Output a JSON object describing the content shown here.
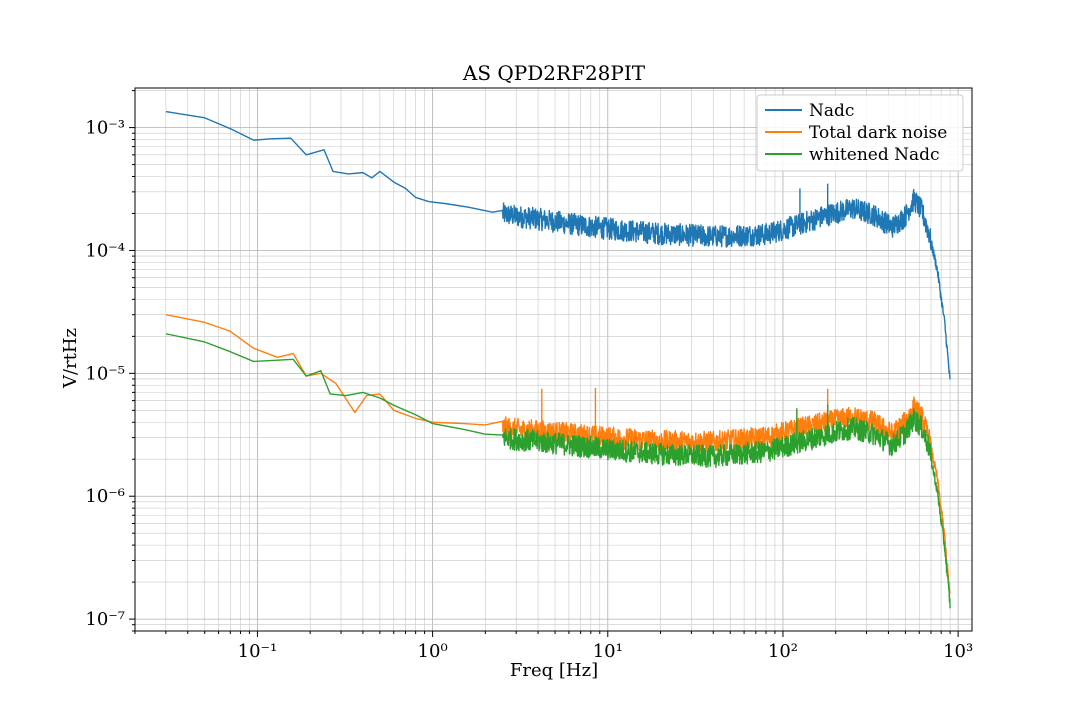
{
  "chart_data": {
    "type": "line",
    "title": "AS QPD2RF28PIT",
    "xlabel": "Freq [Hz]",
    "ylabel": "V/rtHz",
    "xscale": "log",
    "yscale": "log",
    "xlim": [
      0.02,
      1200
    ],
    "ylim": [
      8e-08,
      0.0021
    ],
    "grid": "major and minor",
    "legend_position": "top-right",
    "x_tick_labels": [
      {
        "value": 0.1,
        "label": "10⁻¹"
      },
      {
        "value": 1,
        "label": "10⁰"
      },
      {
        "value": 10,
        "label": "10¹"
      },
      {
        "value": 100,
        "label": "10²"
      },
      {
        "value": 1000,
        "label": "10³"
      }
    ],
    "y_tick_labels": [
      {
        "value": 0.001,
        "label": "10⁻³"
      },
      {
        "value": 0.0001,
        "label": "10⁻⁴"
      },
      {
        "value": 1e-05,
        "label": "10⁻⁵"
      },
      {
        "value": 1e-06,
        "label": "10⁻⁶"
      },
      {
        "value": 1e-07,
        "label": "10⁻⁷"
      }
    ],
    "series": [
      {
        "name": "Nadc",
        "color": "#1f77b4",
        "points": [
          [
            0.03,
            0.00135
          ],
          [
            0.05,
            0.0012
          ],
          [
            0.07,
            0.00098
          ],
          [
            0.095,
            0.00079
          ],
          [
            0.12,
            0.00081
          ],
          [
            0.155,
            0.00082
          ],
          [
            0.19,
            0.0006
          ],
          [
            0.24,
            0.00066
          ],
          [
            0.27,
            0.00044
          ],
          [
            0.33,
            0.00042
          ],
          [
            0.4,
            0.00043
          ],
          [
            0.45,
            0.00039
          ],
          [
            0.5,
            0.00044
          ],
          [
            0.6,
            0.00036
          ],
          [
            0.7,
            0.00032
          ],
          [
            0.8,
            0.00027
          ],
          [
            0.95,
            0.00025
          ],
          [
            1.2,
            0.00024
          ],
          [
            1.6,
            0.000225
          ],
          [
            2.2,
            0.000205
          ],
          [
            3,
            0.00019
          ],
          [
            4,
            0.00018
          ],
          [
            6,
            0.000165
          ],
          [
            10,
            0.00015
          ],
          [
            20,
            0.000137
          ],
          [
            40,
            0.00013
          ],
          [
            80,
            0.000135
          ],
          [
            120,
            0.00016
          ],
          [
            180,
            0.000195
          ],
          [
            250,
            0.00022
          ],
          [
            330,
            0.000195
          ],
          [
            420,
            0.000155
          ],
          [
            500,
            0.00019
          ],
          [
            560,
            0.00026
          ],
          [
            620,
            0.00021
          ],
          [
            680,
            0.00014
          ],
          [
            760,
            7e-05
          ],
          [
            840,
            2.5e-05
          ],
          [
            900,
            8.5e-06
          ]
        ],
        "spikes": [
          [
            125,
            0.00032
          ],
          [
            180,
            0.00035
          ]
        ]
      },
      {
        "name": "Total dark noise",
        "color": "#ff7f0e",
        "points": [
          [
            0.03,
            3e-05
          ],
          [
            0.05,
            2.6e-05
          ],
          [
            0.07,
            2.2e-05
          ],
          [
            0.095,
            1.6e-05
          ],
          [
            0.13,
            1.35e-05
          ],
          [
            0.16,
            1.45e-05
          ],
          [
            0.19,
            9.5e-06
          ],
          [
            0.23,
            1e-05
          ],
          [
            0.28,
            8.3e-06
          ],
          [
            0.32,
            6.2e-06
          ],
          [
            0.36,
            4.8e-06
          ],
          [
            0.42,
            6.6e-06
          ],
          [
            0.5,
            6.8e-06
          ],
          [
            0.6,
            5e-06
          ],
          [
            0.8,
            4.3e-06
          ],
          [
            1.0,
            4e-06
          ],
          [
            1.5,
            3.9e-06
          ],
          [
            2,
            3.8e-06
          ],
          [
            3,
            3.5e-06
          ],
          [
            5,
            3.3e-06
          ],
          [
            10,
            3e-06
          ],
          [
            20,
            2.8e-06
          ],
          [
            40,
            2.75e-06
          ],
          [
            80,
            3e-06
          ],
          [
            120,
            3.5e-06
          ],
          [
            180,
            4e-06
          ],
          [
            250,
            4.4e-06
          ],
          [
            330,
            4e-06
          ],
          [
            420,
            3.2e-06
          ],
          [
            500,
            4e-06
          ],
          [
            560,
            5.3e-06
          ],
          [
            620,
            4.4e-06
          ],
          [
            680,
            3e-06
          ],
          [
            760,
            1.4e-06
          ],
          [
            840,
            4.5e-07
          ],
          [
            900,
            1.5e-07
          ]
        ],
        "spikes": [
          [
            4.2,
            7.5e-06
          ],
          [
            8.5,
            7.6e-06
          ],
          [
            120,
            5e-06
          ],
          [
            180,
            7.5e-06
          ]
        ]
      },
      {
        "name": "whitened Nadc",
        "color": "#2ca02c",
        "points": [
          [
            0.03,
            2.1e-05
          ],
          [
            0.05,
            1.8e-05
          ],
          [
            0.07,
            1.5e-05
          ],
          [
            0.095,
            1.25e-05
          ],
          [
            0.13,
            1.28e-05
          ],
          [
            0.16,
            1.3e-05
          ],
          [
            0.19,
            9.5e-06
          ],
          [
            0.23,
            1.05e-05
          ],
          [
            0.26,
            6.8e-06
          ],
          [
            0.32,
            6.6e-06
          ],
          [
            0.4,
            7e-06
          ],
          [
            0.5,
            6.3e-06
          ],
          [
            0.6,
            5.5e-06
          ],
          [
            0.8,
            4.6e-06
          ],
          [
            1.0,
            3.9e-06
          ],
          [
            1.5,
            3.5e-06
          ],
          [
            2,
            3.2e-06
          ],
          [
            3,
            2.9e-06
          ],
          [
            5,
            2.7e-06
          ],
          [
            10,
            2.4e-06
          ],
          [
            20,
            2.2e-06
          ],
          [
            40,
            2.1e-06
          ],
          [
            80,
            2.3e-06
          ],
          [
            120,
            2.7e-06
          ],
          [
            180,
            3.2e-06
          ],
          [
            250,
            3.6e-06
          ],
          [
            330,
            3.2e-06
          ],
          [
            420,
            2.6e-06
          ],
          [
            500,
            3.3e-06
          ],
          [
            560,
            4.3e-06
          ],
          [
            620,
            3.6e-06
          ],
          [
            680,
            2.5e-06
          ],
          [
            760,
            1.1e-06
          ],
          [
            840,
            3.7e-07
          ],
          [
            900,
            1.3e-07
          ]
        ],
        "spikes": [
          [
            120,
            5.2e-06
          ],
          [
            180,
            5.6e-06
          ]
        ]
      }
    ]
  }
}
